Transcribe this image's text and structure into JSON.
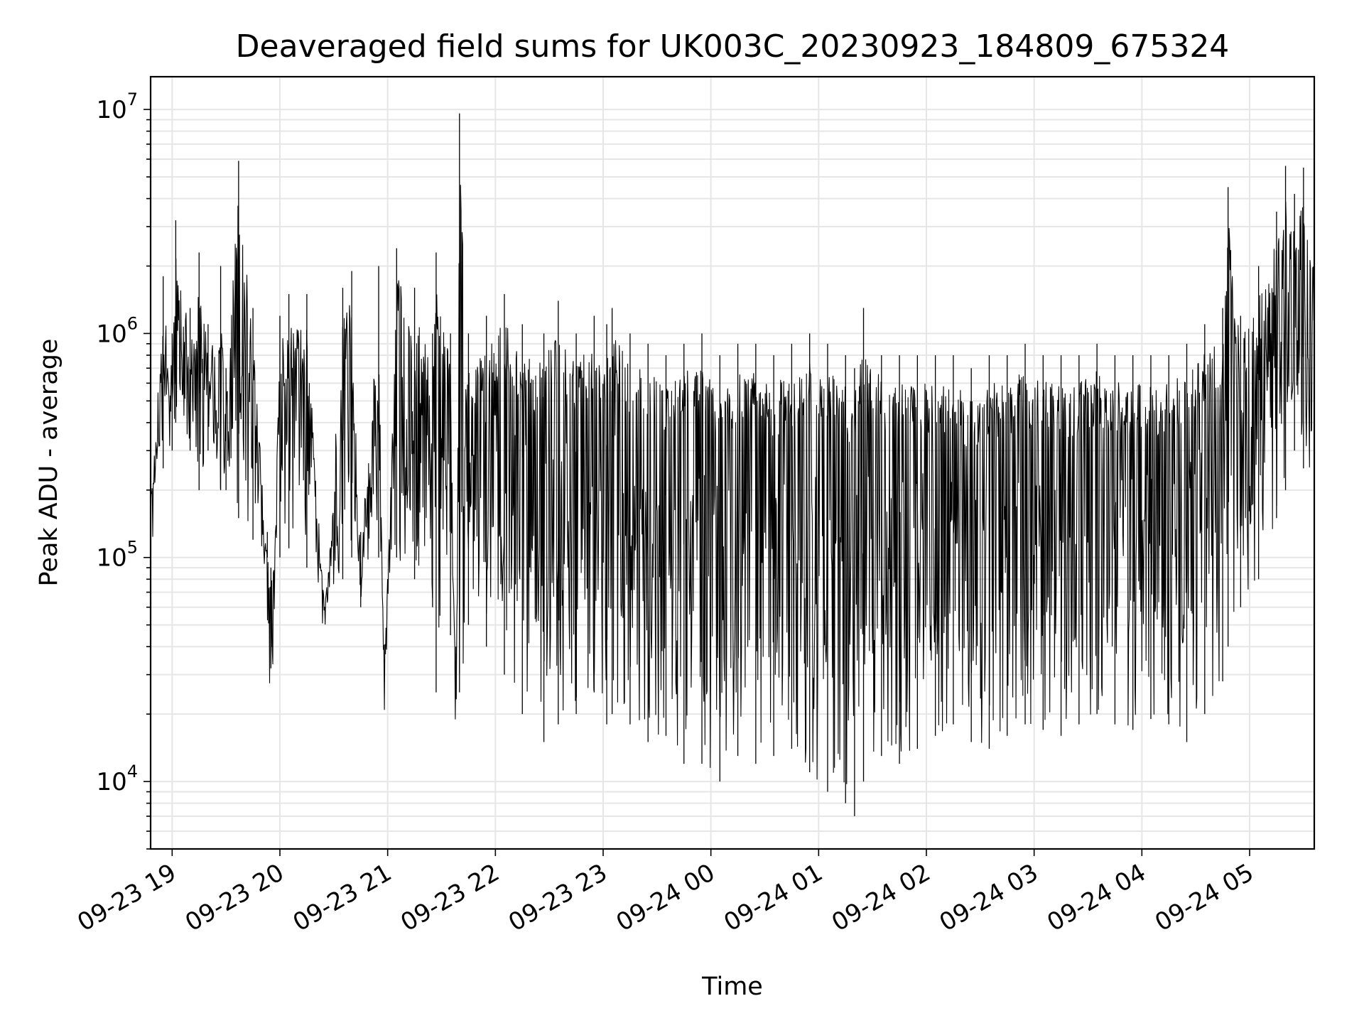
{
  "chart_data": {
    "type": "line",
    "title": "Deaveraged field sums for UK003C_20230923_184809_675324",
    "xlabel": "Time",
    "ylabel": "Peak ADU - average",
    "yscale": "log",
    "ylim": [
      5000,
      14000000
    ],
    "xlim": [
      "2023-09-23 18:48",
      "2023-09-24 05:36"
    ],
    "grid": true,
    "line_color": "#000000",
    "x_ticks": [
      "09-23 19",
      "09-23 20",
      "09-23 21",
      "09-23 22",
      "09-23 23",
      "09-24 00",
      "09-24 01",
      "09-24 02",
      "09-24 03",
      "09-24 04",
      "09-24 05"
    ],
    "y_ticks": [
      {
        "value": 10000,
        "base": "10",
        "exp": "4"
      },
      {
        "value": 100000,
        "base": "10",
        "exp": "5"
      },
      {
        "value": 1000000,
        "base": "10",
        "exp": "6"
      },
      {
        "value": 10000000,
        "base": "10",
        "exp": "7"
      }
    ],
    "series": [
      {
        "x": [
          "2023-09-23 18:48",
          "2023-09-23 18:55",
          "2023-09-23 19:00",
          "2023-09-23 19:02",
          "2023-09-23 19:10",
          "2023-09-23 19:15",
          "2023-09-23 19:20",
          "2023-09-23 19:27",
          "2023-09-23 19:30",
          "2023-09-23 19:37",
          "2023-09-23 19:45",
          "2023-09-23 19:53",
          "2023-09-23 19:55",
          "2023-09-23 20:00",
          "2023-09-23 20:05",
          "2023-09-23 20:15",
          "2023-09-23 20:25",
          "2023-09-23 20:35",
          "2023-09-23 20:40",
          "2023-09-23 20:45",
          "2023-09-23 20:55",
          "2023-09-23 20:58",
          "2023-09-23 21:05",
          "2023-09-23 21:15",
          "2023-09-23 21:25",
          "2023-09-23 21:27",
          "2023-09-23 21:35",
          "2023-09-23 21:38",
          "2023-09-23 21:40",
          "2023-09-23 21:45",
          "2023-09-23 21:55",
          "2023-09-23 22:05",
          "2023-09-23 22:15",
          "2023-09-23 22:27",
          "2023-09-23 22:35",
          "2023-09-23 22:45",
          "2023-09-23 22:55",
          "2023-09-23 23:02",
          "2023-09-23 23:05",
          "2023-09-23 23:15",
          "2023-09-23 23:25",
          "2023-09-23 23:35",
          "2023-09-23 23:45",
          "2023-09-23 23:55",
          "2023-09-24 00:05",
          "2023-09-24 00:15",
          "2023-09-24 00:25",
          "2023-09-24 00:35",
          "2023-09-24 00:45",
          "2023-09-24 00:55",
          "2023-09-24 01:05",
          "2023-09-24 01:15",
          "2023-09-24 01:20",
          "2023-09-24 01:25",
          "2023-09-24 01:35",
          "2023-09-24 01:45",
          "2023-09-24 01:55",
          "2023-09-24 02:05",
          "2023-09-24 02:15",
          "2023-09-24 02:25",
          "2023-09-24 02:35",
          "2023-09-24 02:45",
          "2023-09-24 02:55",
          "2023-09-24 03:05",
          "2023-09-24 03:15",
          "2023-09-24 03:25",
          "2023-09-24 03:35",
          "2023-09-24 03:45",
          "2023-09-24 03:55",
          "2023-09-24 04:05",
          "2023-09-24 04:15",
          "2023-09-24 04:25",
          "2023-09-24 04:35",
          "2023-09-24 04:45",
          "2023-09-24 04:48",
          "2023-09-24 04:55",
          "2023-09-24 05:05",
          "2023-09-24 05:15",
          "2023-09-24 05:20",
          "2023-09-24 05:25",
          "2023-09-24 05:30",
          "2023-09-24 05:36"
        ],
        "y": [
          200000,
          1800000,
          1000000,
          3200000,
          1300000,
          2300000,
          1100000,
          2000000,
          700000,
          5900000,
          1300000,
          130000,
          32000,
          1200000,
          1500000,
          1500000,
          70000,
          1600000,
          1900000,
          130000,
          2000000,
          40000,
          2400000,
          1600000,
          1000000,
          2300000,
          1000000,
          25000,
          9600000,
          1000000,
          1200000,
          1500000,
          1100000,
          1000000,
          1400000,
          1000000,
          1200000,
          1100000,
          1300000,
          1000000,
          900000,
          800000,
          900000,
          1000000,
          800000,
          900000,
          900000,
          800000,
          900000,
          1000000,
          900000,
          800000,
          700000,
          1300000,
          800000,
          800000,
          800000,
          800000,
          800000,
          700000,
          800000,
          800000,
          900000,
          800000,
          800000,
          800000,
          900000,
          800000,
          800000,
          800000,
          800000,
          900000,
          1100000,
          1300000,
          4500000,
          1200000,
          2000000,
          3500000,
          5600000,
          4200000,
          5500000,
          2500000
        ],
        "y_low": [
          200000,
          250000,
          300000,
          400000,
          300000,
          200000,
          300000,
          200000,
          200000,
          150000,
          120000,
          100000,
          90000,
          100000,
          110000,
          90000,
          70000,
          80000,
          100000,
          60000,
          100000,
          40000,
          100000,
          80000,
          60000,
          25000,
          45000,
          40000,
          25000,
          50000,
          40000,
          30000,
          20000,
          15000,
          18000,
          20000,
          25000,
          18000,
          20000,
          18000,
          15000,
          16000,
          12000,
          12000,
          10000,
          13000,
          12000,
          13000,
          14000,
          11000,
          9000,
          8000,
          7000,
          10000,
          13000,
          12000,
          14000,
          16000,
          18000,
          15000,
          14000,
          16000,
          18000,
          17000,
          16000,
          18000,
          20000,
          18000,
          17000,
          19000,
          18000,
          15000,
          20000,
          28000,
          40000,
          60000,
          80000,
          150000,
          200000,
          300000,
          250000,
          150000
        ]
      }
    ]
  }
}
